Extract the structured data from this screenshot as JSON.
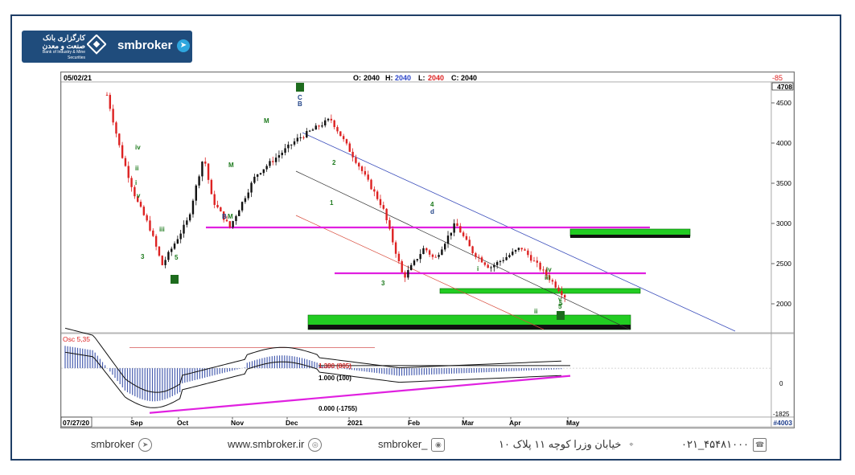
{
  "brand": {
    "name": "smbroker",
    "logo_text": "کارگزاری بانک صنعت و معدن",
    "logo_sub": "Bank of Industry & Mine Securities"
  },
  "header": {
    "date": "05/02/21",
    "open_label": "O:",
    "open": "2040",
    "high_label": "H:",
    "high": "2040",
    "low_label": "L:",
    "low": "2040",
    "close_label": "C:",
    "close": "2040",
    "right_value": "-85",
    "last_price": "4708"
  },
  "osc": {
    "label": "Osc 5,35",
    "fib_1380": "1.380 (805)",
    "fib_1000": "1.000 (100)",
    "fib_0": "0.000 (-1755)",
    "axis_top": "0",
    "axis_bottom": "-1825",
    "footer_value": "#4003"
  },
  "footer": {
    "telegram": "smbroker",
    "website": "www.smbroker.ir",
    "instagram": "smbroker_",
    "address": "خیابان وزرا کوچه ۱۱ پلاک ۱۰",
    "phone": "۰۲۱_۴۵۴۸۱۰۰۰"
  },
  "colors": {
    "frame": "#1f3e66",
    "magenta": "#e020e0",
    "green": "#22cc22",
    "bull": "#111111",
    "bear": "#dd2222",
    "osc_bar": "#4a5fb0"
  },
  "chart_data": {
    "type": "candlestick",
    "x_start": "07/27/20",
    "x_labels": [
      "Sep",
      "Oct",
      "Nov",
      "Dec",
      "2021",
      "Feb",
      "Mar",
      "Apr",
      "May"
    ],
    "y_ticks": [
      2000,
      2500,
      3000,
      3500,
      4000,
      4500
    ],
    "ylim": [
      1650,
      4750
    ],
    "price_path": [
      {
        "x": "late Jul",
        "y": 4600
      },
      {
        "x": "mid Aug",
        "y": 3900
      },
      {
        "x": "late Aug",
        "y": 3300
      },
      {
        "x": "early Sep",
        "y": 2950
      },
      {
        "x": "mid Sep",
        "y": 2480
      },
      {
        "x": "late Sep",
        "y": 3050
      },
      {
        "x": "early Oct",
        "y": 3850
      },
      {
        "x": "mid Oct",
        "y": 3300
      },
      {
        "x": "late Oct",
        "y": 2950
      },
      {
        "x": "early Nov",
        "y": 3600
      },
      {
        "x": "late Nov",
        "y": 4050
      },
      {
        "x": "mid Dec",
        "y": 4300
      },
      {
        "x": "late Dec",
        "y": 3700
      },
      {
        "x": "early Jan",
        "y": 3200
      },
      {
        "x": "mid Jan",
        "y": 2320
      },
      {
        "x": "late Jan",
        "y": 2700
      },
      {
        "x": "early Feb",
        "y": 2550
      },
      {
        "x": "mid Feb",
        "y": 3000
      },
      {
        "x": "late Feb",
        "y": 2650
      },
      {
        "x": "mid Mar",
        "y": 2450
      },
      {
        "x": "early Apr",
        "y": 2700
      },
      {
        "x": "mid Apr",
        "y": 2350
      },
      {
        "x": "late Apr",
        "y": 2050
      }
    ],
    "horizontal_levels": [
      2950,
      2380
    ],
    "support_zones": [
      {
        "name": "upper",
        "from": 2840,
        "to": 2930
      },
      {
        "name": "middle",
        "from": 2130,
        "to": 2190
      },
      {
        "name": "lower",
        "from": 1680,
        "to": 1860
      }
    ],
    "wave_labels": [
      "4",
      "C",
      "B",
      "M",
      "M",
      "M",
      "3",
      "5",
      "B",
      "iv",
      "v",
      "iii",
      "ii",
      "i",
      "2",
      "1",
      "4",
      "d",
      "5",
      "3",
      "iv",
      "iii",
      "ii",
      "i",
      "v",
      "5"
    ],
    "oscillator": {
      "name": "Osc 5,35",
      "levels": [
        {
          "label": "1.380 (805)",
          "value": 805
        },
        {
          "label": "1.000 (100)",
          "value": 100
        },
        {
          "label": "0.000 (-1755)",
          "value": -1755
        }
      ],
      "ylim": [
        -1825,
        1200
      ]
    }
  }
}
